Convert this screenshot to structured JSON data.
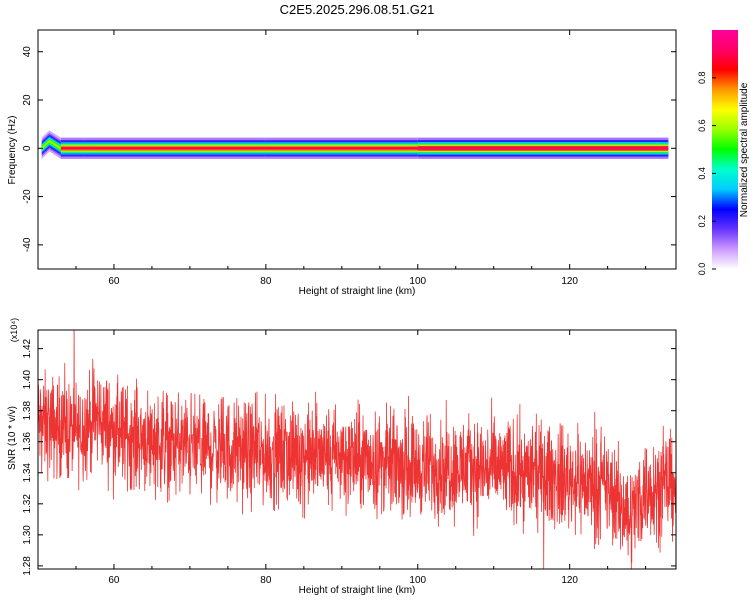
{
  "title": "C2E5.2025.296.08.51.G21",
  "chart_data": [
    {
      "type": "heatmap",
      "xlabel": "Height of straight line (km)",
      "ylabel": "Frequency (Hz)",
      "xlim": [
        50,
        134
      ],
      "ylim": [
        -50,
        49
      ],
      "xticks": [
        60,
        80,
        100,
        120
      ],
      "yticks": [
        -40,
        -20,
        0,
        20,
        40
      ],
      "colorbar": {
        "label": "Normalized spectral amplitude",
        "range": [
          0,
          1
        ],
        "ticks": [
          "0.0",
          "0.2",
          "0.4",
          "0.6",
          "0.8"
        ],
        "colors": [
          "#ffffff",
          "#cc99ff",
          "#6633ff",
          "#0000ff",
          "#00ccff",
          "#00ffcc",
          "#00ff00",
          "#99ff00",
          "#ffff00",
          "#ff9900",
          "#ff0000",
          "#ff0066",
          "#ff0099"
        ]
      },
      "ridge": {
        "description_points": [
          {
            "x": 50.5,
            "y": 0,
            "amplitude": 0.9
          },
          {
            "x": 51.5,
            "y": 3,
            "amplitude": 0.6
          },
          {
            "x": 53,
            "y": 0,
            "amplitude": 1.0
          },
          {
            "x": 56,
            "y": 0,
            "amplitude": 0.9
          },
          {
            "x": 80,
            "y": 0,
            "amplitude": 0.9
          },
          {
            "x": 100,
            "y": 0,
            "amplitude": 0.95
          },
          {
            "x": 133,
            "y": 0,
            "amplitude": 0.95
          }
        ],
        "half_width_hz": 2
      }
    },
    {
      "type": "line",
      "xlabel": "Height of straight line (km)",
      "ylabel": "SNR (10 * v/v)",
      "y_multiplier": "(x10⁴)",
      "xlim": [
        50,
        134
      ],
      "ylim": [
        1.278,
        1.432
      ],
      "xticks": [
        60,
        80,
        100,
        120
      ],
      "yticks": [
        1.28,
        1.3,
        1.32,
        1.34,
        1.36,
        1.38,
        1.4,
        1.42
      ],
      "ytick_labels": [
        "1.28",
        "1.30",
        "1.32",
        "1.34",
        "1.36",
        "1.38",
        "1.40",
        "1.42"
      ],
      "color": "#ee3333",
      "trend": {
        "x": [
          50,
          55,
          58,
          60,
          70,
          80,
          90,
          100,
          110,
          120,
          125,
          128,
          130,
          134
        ],
        "y": [
          1.372,
          1.366,
          1.376,
          1.366,
          1.357,
          1.352,
          1.35,
          1.344,
          1.343,
          1.336,
          1.33,
          1.312,
          1.33,
          1.333
        ]
      },
      "noise_amplitude": 0.02,
      "samples": 2600
    }
  ]
}
